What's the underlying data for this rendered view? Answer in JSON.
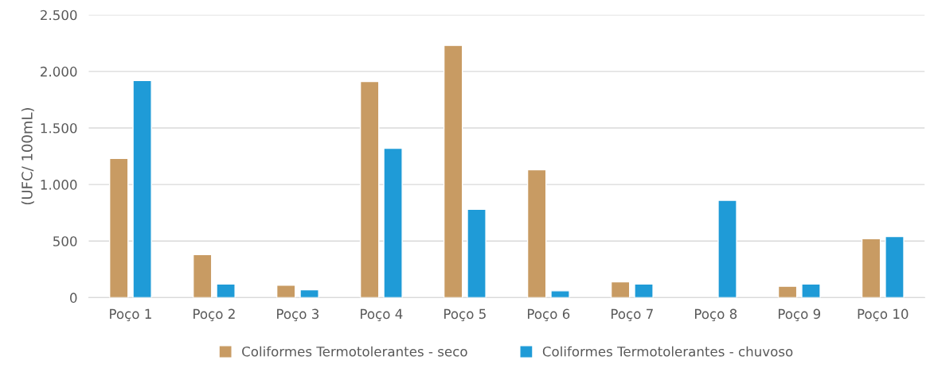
{
  "chart_data": {
    "type": "bar",
    "ylabel": "(UFC/ 100mL)",
    "categories": [
      "Poço 1",
      "Poço 2",
      "Poço 3",
      "Poço 4",
      "Poço 5",
      "Poço 6",
      "Poço 7",
      "Poço 8",
      "Poço 9",
      "Poço 10"
    ],
    "series": [
      {
        "name": "Coliformes Termotolerantes - seco",
        "color": "#c89b63",
        "values": [
          1230,
          380,
          110,
          1910,
          2230,
          1130,
          140,
          null,
          100,
          520
        ]
      },
      {
        "name": "Coliformes Termotolerantes - chuvoso",
        "color": "#1f9bd7",
        "values": [
          1920,
          120,
          70,
          1320,
          780,
          60,
          120,
          860,
          120,
          540
        ]
      }
    ],
    "ylim": [
      0,
      2500
    ],
    "yticks": [
      {
        "value": 0,
        "label": "0"
      },
      {
        "value": 500,
        "label": "500"
      },
      {
        "value": 1000,
        "label": "1.000"
      },
      {
        "value": 1500,
        "label": "1.500"
      },
      {
        "value": 2000,
        "label": "2.000"
      },
      {
        "value": 2500,
        "label": "2.500"
      }
    ],
    "grid": "y",
    "legend": "bottom"
  }
}
